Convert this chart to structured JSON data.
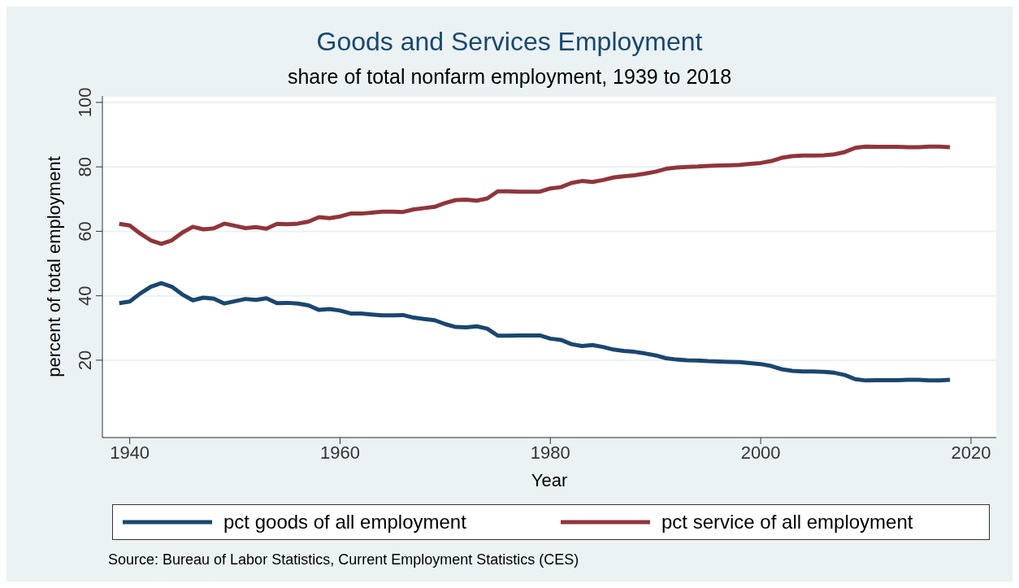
{
  "chart_data": {
    "type": "line",
    "title": "Goods and Services Employment",
    "subtitle": "share of total nonfarm employment, 1939 to 2018",
    "xlabel": "Year",
    "ylabel": "percent of total employment",
    "annotations": [
      "Source: Bureau of Labor Statistics, Current Employment Statistics (CES)"
    ],
    "x": [
      1939,
      1940,
      1941,
      1942,
      1943,
      1944,
      1945,
      1946,
      1947,
      1948,
      1949,
      1950,
      1951,
      1952,
      1953,
      1954,
      1955,
      1956,
      1957,
      1958,
      1959,
      1960,
      1961,
      1962,
      1963,
      1964,
      1965,
      1966,
      1967,
      1968,
      1969,
      1970,
      1971,
      1972,
      1973,
      1974,
      1975,
      1976,
      1977,
      1978,
      1979,
      1980,
      1981,
      1982,
      1983,
      1984,
      1985,
      1986,
      1987,
      1988,
      1989,
      1990,
      1991,
      1992,
      1993,
      1994,
      1995,
      1996,
      1997,
      1998,
      1999,
      2000,
      2001,
      2002,
      2003,
      2004,
      2005,
      2006,
      2007,
      2008,
      2009,
      2010,
      2011,
      2012,
      2013,
      2014,
      2015,
      2016,
      2017,
      2018
    ],
    "series": [
      {
        "name": "pct goods of all employment",
        "color": "#1a476f",
        "values": [
          37.7,
          38.2,
          40.7,
          42.8,
          43.9,
          42.8,
          40.4,
          38.6,
          39.4,
          39.1,
          37.6,
          38.3,
          39.0,
          38.7,
          39.2,
          37.7,
          37.8,
          37.6,
          37.0,
          35.6,
          35.9,
          35.4,
          34.5,
          34.5,
          34.2,
          33.9,
          33.9,
          34.0,
          33.2,
          32.8,
          32.4,
          31.2,
          30.3,
          30.2,
          30.5,
          29.8,
          27.6,
          27.6,
          27.7,
          27.7,
          27.7,
          26.7,
          26.3,
          25.0,
          24.4,
          24.7,
          24.1,
          23.3,
          22.9,
          22.6,
          22.1,
          21.5,
          20.6,
          20.2,
          20.0,
          19.9,
          19.7,
          19.6,
          19.5,
          19.4,
          19.1,
          18.8,
          18.2,
          17.2,
          16.7,
          16.5,
          16.5,
          16.4,
          16.1,
          15.4,
          14.1,
          13.7,
          13.8,
          13.8,
          13.8,
          13.9,
          13.9,
          13.7,
          13.7,
          13.9
        ]
      },
      {
        "name": "pct service of all employment",
        "color": "#90353b",
        "values": [
          62.3,
          61.8,
          59.3,
          57.2,
          56.1,
          57.2,
          59.6,
          61.4,
          60.6,
          60.9,
          62.4,
          61.7,
          61.0,
          61.3,
          60.8,
          62.3,
          62.2,
          62.4,
          63.0,
          64.4,
          64.1,
          64.6,
          65.5,
          65.5,
          65.8,
          66.1,
          66.1,
          66.0,
          66.8,
          67.2,
          67.6,
          68.8,
          69.7,
          69.8,
          69.5,
          70.2,
          72.4,
          72.4,
          72.3,
          72.3,
          72.3,
          73.3,
          73.7,
          75.0,
          75.6,
          75.3,
          75.9,
          76.7,
          77.1,
          77.4,
          77.9,
          78.5,
          79.4,
          79.8,
          80.0,
          80.1,
          80.3,
          80.4,
          80.5,
          80.6,
          80.9,
          81.2,
          81.8,
          82.8,
          83.3,
          83.5,
          83.5,
          83.6,
          83.9,
          84.6,
          85.9,
          86.3,
          86.2,
          86.2,
          86.2,
          86.1,
          86.1,
          86.3,
          86.3,
          86.1
        ]
      }
    ],
    "xlim": [
      1937.4,
      2022.4
    ],
    "xticks": [
      1940,
      1960,
      1980,
      2000,
      2020
    ],
    "ylim": [
      -4,
      102
    ],
    "yticks": [
      20,
      40,
      60,
      80,
      100
    ],
    "grid": "y",
    "legend": "bottom",
    "marker": "none",
    "line_style": "solid"
  }
}
